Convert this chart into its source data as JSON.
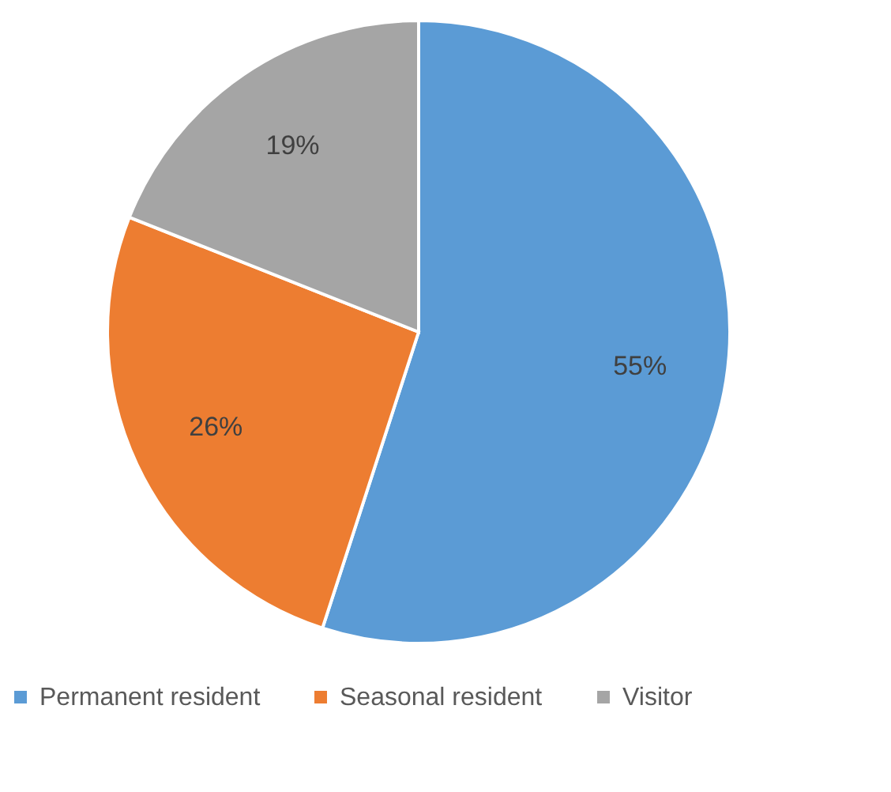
{
  "chart_data": {
    "type": "pie",
    "categories": [
      "Permanent resident",
      "Seasonal resident",
      "Visitor"
    ],
    "values": [
      55,
      26,
      19
    ],
    "colors": [
      "#5b9bd5",
      "#ed7d31",
      "#a5a5a5"
    ],
    "value_labels": [
      "55%",
      "26%",
      "19%"
    ],
    "legend": "bottom"
  }
}
